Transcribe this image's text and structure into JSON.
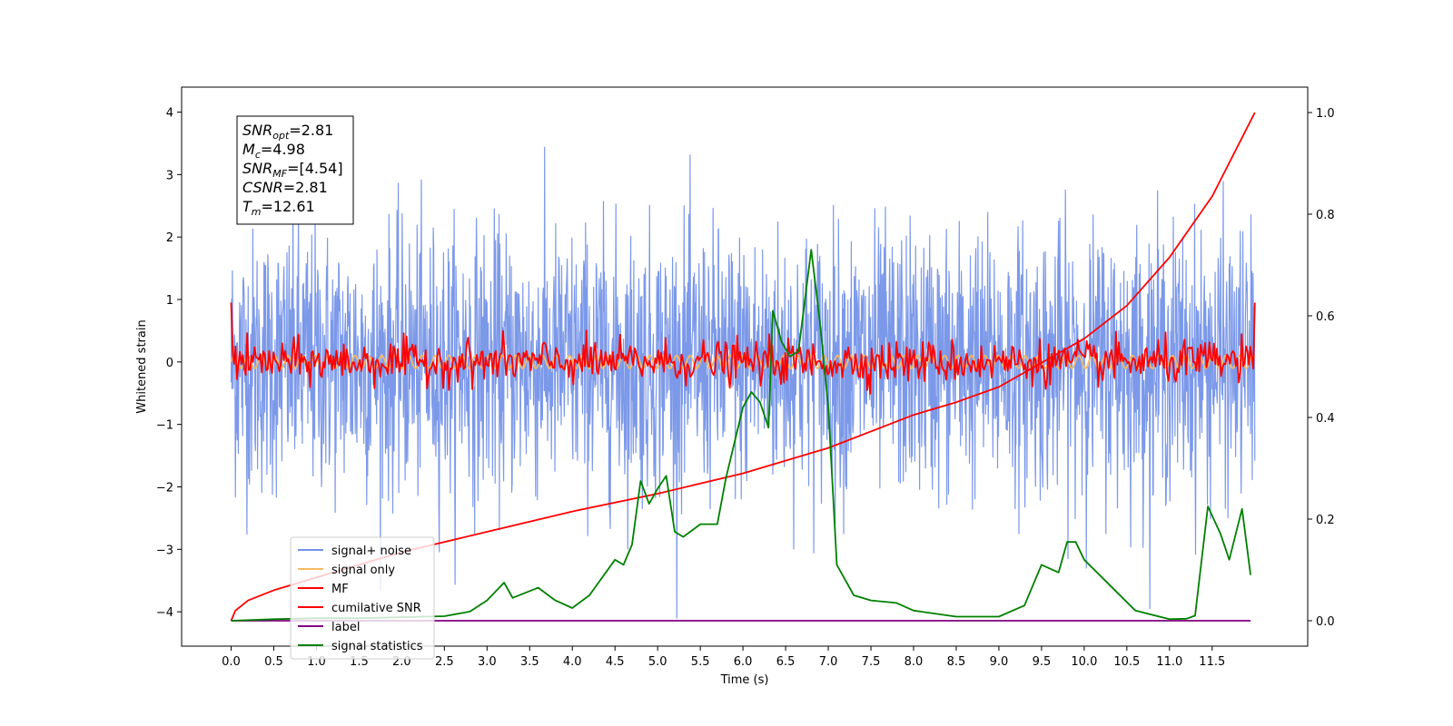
{
  "chart_data": {
    "type": "line",
    "xlabel": "Time (s)",
    "ylabel": "Whitened strain",
    "x_ticks": [
      "0.0",
      "0.5",
      "1.0",
      "1.5",
      "2.0",
      "2.5",
      "3.0",
      "3.5",
      "4.0",
      "4.5",
      "5.0",
      "5.5",
      "6.0",
      "6.5",
      "7.0",
      "7.5",
      "8.0",
      "8.5",
      "9.0",
      "9.5",
      "10.0",
      "10.5",
      "11.0",
      "11.5"
    ],
    "y_ticks": [
      "4",
      "3",
      "2",
      "1",
      "0",
      "−1",
      "−2",
      "−3",
      "−4"
    ],
    "y2_ticks": [
      "1.0",
      "0.8",
      "0.6",
      "0.4",
      "0.2",
      "0.0"
    ],
    "xlim": [
      -0.58,
      12.62
    ],
    "ylim": [
      -4.55,
      4.4
    ],
    "y2lim": [
      -0.05,
      1.05
    ],
    "legend_placement": "lower-left",
    "annotation": {
      "lines": [
        {
          "sym": "SNR",
          "sub": "opt",
          "val": "=2.81"
        },
        {
          "sym": "M",
          "sub": "c",
          "val": "=4.98"
        },
        {
          "sym": "SNR",
          "sub": "MF",
          "val": "=[4.54]"
        },
        {
          "sym": "CSNR",
          "sub": "",
          "val": "=2.81"
        },
        {
          "sym": "T",
          "sub": "m",
          "val": "=12.61"
        }
      ]
    },
    "series": [
      {
        "name": "signal+ noise",
        "color": "#7593e8",
        "axis": "left",
        "style": "noise",
        "x_range": [
          0,
          12.0
        ],
        "band": [
          -2.2,
          2.3
        ],
        "spike_max": 4.0,
        "spike_min": -4.1
      },
      {
        "name": "signal only",
        "color": "#f5b963",
        "axis": "left",
        "style": "small",
        "x_range": [
          0,
          12.0
        ],
        "amplitude": 0.15
      },
      {
        "name": "MF",
        "color": "#ff0000",
        "axis": "left",
        "style": "mf",
        "x_range": [
          0,
          12.0
        ],
        "start": 0.95,
        "end": 0.95,
        "amplitude": 0.4
      },
      {
        "name": "cumilative SNR",
        "color": "#ff0000",
        "axis": "right",
        "style": "curve",
        "x": [
          0.0,
          0.05,
          0.2,
          0.5,
          1.0,
          2.0,
          3.0,
          4.0,
          5.0,
          6.0,
          7.0,
          8.0,
          8.5,
          9.0,
          10.0,
          10.5,
          11.0,
          11.5,
          12.0
        ],
        "y": [
          0.0,
          0.02,
          0.04,
          0.06,
          0.085,
          0.135,
          0.175,
          0.215,
          0.25,
          0.29,
          0.34,
          0.405,
          0.43,
          0.46,
          0.555,
          0.62,
          0.715,
          0.835,
          1.0
        ]
      },
      {
        "name": "label",
        "color": "#800080",
        "axis": "right",
        "style": "flat",
        "x": [
          0.0,
          11.95
        ],
        "y": [
          0.0,
          0.0
        ]
      },
      {
        "name": "signal statistics",
        "color": "#008000",
        "axis": "right",
        "style": "curve",
        "x": [
          0.0,
          0.5,
          1.0,
          1.5,
          2.0,
          2.5,
          2.8,
          3.0,
          3.2,
          3.3,
          3.6,
          3.8,
          4.0,
          4.2,
          4.5,
          4.6,
          4.7,
          4.8,
          4.9,
          5.0,
          5.1,
          5.2,
          5.3,
          5.5,
          5.7,
          5.8,
          5.9,
          6.0,
          6.1,
          6.2,
          6.3,
          6.35,
          6.45,
          6.55,
          6.65,
          6.8,
          6.9,
          7.0,
          7.1,
          7.3,
          7.5,
          7.8,
          8.0,
          8.5,
          9.0,
          9.3,
          9.5,
          9.7,
          9.8,
          9.9,
          10.0,
          10.3,
          10.6,
          11.0,
          11.2,
          11.3,
          11.45,
          11.6,
          11.7,
          11.85,
          11.95
        ],
        "y": [
          0.0,
          0.003,
          0.005,
          0.005,
          0.007,
          0.009,
          0.018,
          0.04,
          0.075,
          0.045,
          0.065,
          0.04,
          0.025,
          0.05,
          0.12,
          0.11,
          0.15,
          0.275,
          0.23,
          0.26,
          0.285,
          0.175,
          0.165,
          0.19,
          0.19,
          0.28,
          0.35,
          0.42,
          0.45,
          0.43,
          0.38,
          0.61,
          0.55,
          0.52,
          0.53,
          0.73,
          0.59,
          0.42,
          0.11,
          0.05,
          0.04,
          0.035,
          0.02,
          0.008,
          0.008,
          0.03,
          0.11,
          0.095,
          0.155,
          0.155,
          0.12,
          0.07,
          0.02,
          0.003,
          0.004,
          0.01,
          0.225,
          0.17,
          0.12,
          0.22,
          0.09
        ]
      }
    ]
  }
}
